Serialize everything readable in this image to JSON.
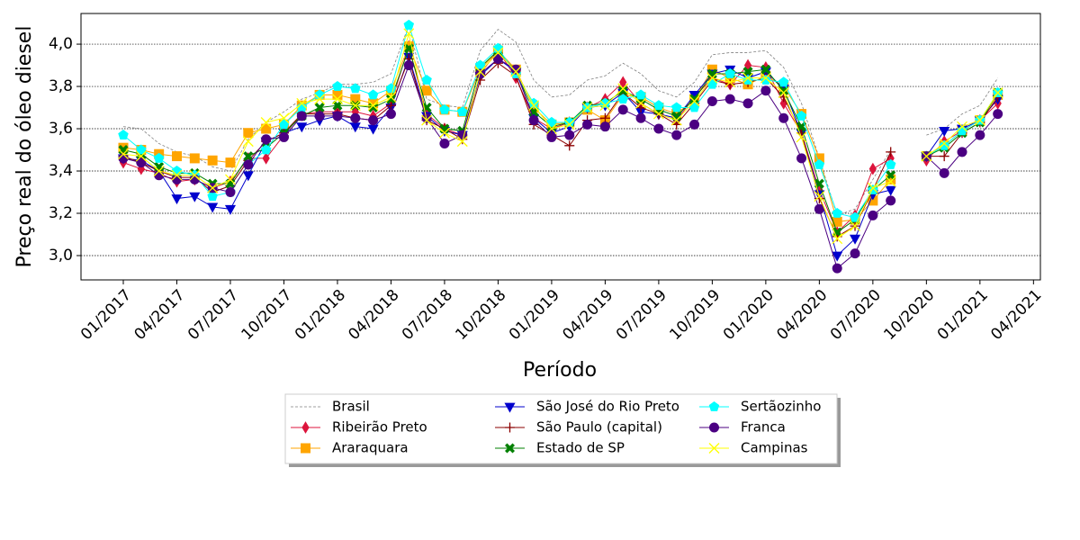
{
  "chart_data": {
    "type": "line",
    "x_label": "Período",
    "y_label": "Preço real do óleo diesel",
    "categories": [
      "01/2017",
      null,
      null,
      "04/2017",
      null,
      null,
      "07/2017",
      null,
      null,
      "10/2017",
      null,
      null,
      "01/2018",
      null,
      null,
      "04/2018",
      null,
      null,
      "07/2018",
      null,
      null,
      "10/2018",
      null,
      null,
      "01/2019",
      null,
      null,
      "04/2019",
      null,
      null,
      "07/2019",
      null,
      null,
      "10/2019",
      null,
      null,
      "01/2020",
      null,
      null,
      "04/2020",
      null,
      null,
      "07/2020",
      null,
      null,
      "10/2020",
      null,
      null,
      "01/2021",
      null,
      null,
      "04/2021"
    ],
    "ylim": [
      2.885,
      4.145
    ],
    "yticks": [
      {
        "value": 3.0,
        "label": "3,0"
      },
      {
        "value": 3.2,
        "label": "3,2"
      },
      {
        "value": 3.4,
        "label": "3,4"
      },
      {
        "value": 3.6,
        "label": "3,6"
      },
      {
        "value": 3.8,
        "label": "3,8"
      },
      {
        "value": 4.0,
        "label": "4,0"
      }
    ],
    "grid": true,
    "legend": "lower center",
    "series": [
      {
        "name": "Brasil",
        "color": "#808080",
        "linestyle": "dashed",
        "marker": "none",
        "values": [
          3.61,
          3.6,
          3.53,
          3.49,
          3.47,
          3.42,
          3.4,
          3.55,
          3.63,
          3.68,
          3.74,
          3.77,
          3.81,
          3.81,
          3.82,
          3.86,
          4.09,
          3.74,
          3.71,
          3.7,
          3.97,
          4.07,
          4.01,
          3.83,
          3.75,
          3.76,
          3.83,
          3.85,
          3.91,
          3.86,
          3.78,
          3.75,
          3.82,
          3.95,
          3.96,
          3.96,
          3.97,
          3.89,
          3.72,
          3.46,
          3.19,
          3.22,
          3.36,
          3.5,
          null,
          3.57,
          3.6,
          3.67,
          3.71,
          3.84,
          null,
          null
        ]
      },
      {
        "name": "Ribeirão Preto",
        "color": "#dc143c",
        "linestyle": "solid",
        "marker": "diamond",
        "values": [
          3.44,
          3.41,
          3.39,
          3.35,
          3.36,
          3.32,
          3.35,
          3.46,
          3.46,
          3.57,
          3.67,
          3.68,
          3.68,
          3.68,
          3.66,
          3.72,
          3.99,
          3.67,
          3.6,
          3.57,
          3.86,
          3.97,
          3.84,
          3.65,
          3.6,
          3.63,
          3.7,
          3.74,
          3.82,
          3.72,
          3.67,
          3.64,
          3.75,
          3.84,
          3.81,
          3.9,
          3.89,
          3.72,
          3.58,
          3.31,
          3.11,
          3.19,
          3.41,
          3.46,
          null,
          3.45,
          3.54,
          3.59,
          3.64,
          3.72,
          null,
          null
        ]
      },
      {
        "name": "Araraquara",
        "color": "#ffa500",
        "linestyle": "solid",
        "marker": "square",
        "values": [
          3.51,
          3.5,
          3.48,
          3.47,
          3.46,
          3.45,
          3.44,
          3.58,
          3.6,
          3.62,
          3.71,
          3.76,
          3.76,
          3.74,
          3.72,
          3.78,
          3.99,
          3.78,
          3.69,
          3.68,
          3.88,
          3.97,
          3.88,
          3.7,
          3.62,
          3.63,
          3.69,
          3.64,
          3.76,
          3.75,
          3.7,
          3.67,
          3.74,
          3.88,
          3.84,
          3.81,
          3.85,
          3.8,
          3.67,
          3.46,
          3.16,
          3.17,
          3.26,
          3.36,
          null,
          3.47,
          3.52,
          3.59,
          3.64,
          3.76,
          null,
          null
        ]
      },
      {
        "name": "São José do Rio Preto",
        "color": "#0000cd",
        "linestyle": "solid",
        "marker": "triangle_down",
        "values": [
          3.46,
          3.45,
          3.4,
          3.27,
          3.28,
          3.23,
          3.22,
          3.38,
          3.54,
          3.58,
          3.61,
          3.64,
          3.66,
          3.61,
          3.6,
          3.7,
          3.94,
          3.66,
          3.59,
          3.57,
          3.85,
          3.93,
          3.87,
          3.65,
          3.58,
          3.61,
          3.7,
          3.71,
          3.77,
          3.68,
          3.67,
          3.65,
          3.76,
          3.86,
          3.88,
          3.84,
          3.87,
          3.79,
          3.58,
          3.29,
          3.0,
          3.08,
          3.29,
          3.31,
          null,
          3.47,
          3.59,
          3.6,
          3.64,
          3.74,
          null,
          null
        ]
      },
      {
        "name": "São Paulo (capital)",
        "color": "#8b0000",
        "linestyle": "solid",
        "marker": "plus",
        "values": [
          3.47,
          3.44,
          3.4,
          3.37,
          3.37,
          3.3,
          3.33,
          3.45,
          3.54,
          3.58,
          3.67,
          3.67,
          3.67,
          3.65,
          3.64,
          3.71,
          3.93,
          3.64,
          3.6,
          3.55,
          3.83,
          3.91,
          3.85,
          3.62,
          3.57,
          3.52,
          3.64,
          3.65,
          3.77,
          3.7,
          3.67,
          3.62,
          3.72,
          3.83,
          3.81,
          3.82,
          3.84,
          3.75,
          3.58,
          3.27,
          3.09,
          3.14,
          3.31,
          3.49,
          null,
          3.47,
          3.47,
          3.58,
          3.63,
          3.75,
          null,
          null
        ]
      },
      {
        "name": "Estado de SP",
        "color": "#008000",
        "linestyle": "solid",
        "marker": "x_filled",
        "values": [
          3.5,
          3.48,
          3.42,
          3.39,
          3.39,
          3.34,
          3.34,
          3.47,
          3.51,
          3.58,
          3.66,
          3.7,
          3.71,
          3.71,
          3.7,
          3.74,
          3.98,
          3.7,
          3.6,
          3.59,
          3.89,
          3.97,
          3.87,
          3.68,
          3.61,
          3.63,
          3.71,
          3.72,
          3.78,
          3.74,
          3.69,
          3.66,
          3.74,
          3.86,
          3.86,
          3.87,
          3.88,
          3.78,
          3.61,
          3.34,
          3.11,
          3.17,
          3.31,
          3.38,
          null,
          3.47,
          3.51,
          3.58,
          3.63,
          3.77,
          null,
          null
        ]
      },
      {
        "name": "Sertãozinho",
        "color": "#00ffff",
        "linestyle": "solid",
        "marker": "pentagon",
        "values": [
          3.57,
          3.5,
          3.46,
          3.4,
          3.38,
          3.28,
          3.3,
          3.43,
          3.5,
          3.62,
          3.7,
          3.76,
          3.8,
          3.79,
          3.76,
          3.79,
          4.09,
          3.83,
          3.69,
          3.68,
          3.9,
          3.98,
          3.86,
          3.72,
          3.63,
          3.63,
          3.7,
          3.72,
          3.74,
          3.76,
          3.71,
          3.7,
          3.7,
          3.81,
          3.86,
          3.83,
          3.83,
          3.82,
          3.66,
          3.43,
          3.2,
          3.18,
          3.31,
          3.43,
          null,
          3.47,
          3.52,
          3.59,
          3.64,
          3.77,
          null,
          null
        ]
      },
      {
        "name": "Franca",
        "color": "#4b0082",
        "linestyle": "solid",
        "marker": "circle",
        "values": [
          3.46,
          3.44,
          3.38,
          3.36,
          3.36,
          3.32,
          3.3,
          3.43,
          3.55,
          3.56,
          3.66,
          3.66,
          3.66,
          3.65,
          3.64,
          3.67,
          3.9,
          3.65,
          3.53,
          3.57,
          3.86,
          3.93,
          3.88,
          3.64,
          3.56,
          3.57,
          3.62,
          3.61,
          3.69,
          3.65,
          3.6,
          3.57,
          3.62,
          3.73,
          3.74,
          3.72,
          3.78,
          3.65,
          3.46,
          3.22,
          2.94,
          3.01,
          3.19,
          3.26,
          null,
          3.47,
          3.39,
          3.49,
          3.57,
          3.67,
          null,
          null
        ]
      },
      {
        "name": "Campinas",
        "color": "#ffff00",
        "linestyle": "solid",
        "marker": "x",
        "values": [
          3.48,
          3.47,
          3.4,
          3.38,
          3.38,
          3.32,
          3.36,
          3.54,
          3.63,
          3.65,
          3.72,
          3.74,
          3.74,
          3.71,
          3.71,
          3.75,
          4.05,
          3.64,
          3.58,
          3.54,
          3.87,
          3.96,
          3.87,
          3.71,
          3.6,
          3.62,
          3.7,
          3.71,
          3.79,
          3.72,
          3.67,
          3.64,
          3.73,
          3.84,
          3.82,
          3.84,
          3.84,
          3.77,
          3.56,
          3.28,
          3.08,
          3.14,
          3.32,
          3.35,
          null,
          3.47,
          3.53,
          3.61,
          3.64,
          3.77,
          null,
          null
        ]
      }
    ]
  }
}
